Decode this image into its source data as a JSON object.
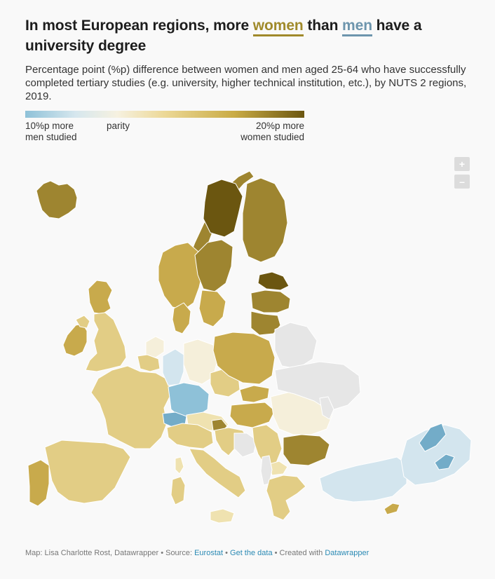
{
  "header": {
    "title_part1": "In most European regions, more ",
    "title_women": "women",
    "title_part2": " than ",
    "title_men": "men",
    "title_part3": " have a university degree",
    "subtitle": "Percentage point (%p) difference between women and men aged 25-64 who have successfully completed tertiary studies (e.g. university, higher technical institution, etc.), by NUTS 2 regions, 2019."
  },
  "legend": {
    "left_line1": "10%p more",
    "left_line2": "men studied",
    "middle": "parity",
    "right_line1": "20%p more",
    "right_line2": "women studied",
    "scale_min": -10,
    "scale_mid": 0,
    "scale_max": 20
  },
  "zoom": {
    "plus": "+",
    "minus": "–"
  },
  "colors": {
    "dark_gold": "#6b5610",
    "gold": "#9e8530",
    "mid_gold": "#c8aa4c",
    "light_gold": "#e2cd85",
    "pale_gold": "#efe2b0",
    "cream": "#f5efda",
    "pale_blue": "#d3e5ee",
    "blue": "#8ec1d8",
    "mid_blue": "#73acc8",
    "no_data": "#e6e6e6"
  },
  "regions": [
    {
      "name": "Iceland",
      "fill": "gold"
    },
    {
      "name": "Ireland",
      "fill": "mid_gold"
    },
    {
      "name": "Northern Ireland",
      "fill": "light_gold"
    },
    {
      "name": "Scotland",
      "fill": "mid_gold"
    },
    {
      "name": "England",
      "fill": "light_gold"
    },
    {
      "name": "Norway North",
      "fill": "gold"
    },
    {
      "name": "Norway South",
      "fill": "mid_gold"
    },
    {
      "name": "Sweden North",
      "fill": "dark_gold"
    },
    {
      "name": "Sweden Central",
      "fill": "gold"
    },
    {
      "name": "Sweden South",
      "fill": "mid_gold"
    },
    {
      "name": "Finland",
      "fill": "gold"
    },
    {
      "name": "Estonia",
      "fill": "dark_gold"
    },
    {
      "name": "Latvia",
      "fill": "gold"
    },
    {
      "name": "Lithuania",
      "fill": "gold"
    },
    {
      "name": "Denmark",
      "fill": "mid_gold"
    },
    {
      "name": "Netherlands",
      "fill": "cream"
    },
    {
      "name": "Belgium",
      "fill": "light_gold"
    },
    {
      "name": "France",
      "fill": "light_gold"
    },
    {
      "name": "Spain",
      "fill": "light_gold"
    },
    {
      "name": "Portugal",
      "fill": "mid_gold"
    },
    {
      "name": "Germany West",
      "fill": "pale_blue"
    },
    {
      "name": "Germany South",
      "fill": "blue"
    },
    {
      "name": "Germany East",
      "fill": "cream"
    },
    {
      "name": "Switzerland",
      "fill": "mid_blue"
    },
    {
      "name": "Austria",
      "fill": "pale_gold"
    },
    {
      "name": "Czechia",
      "fill": "light_gold"
    },
    {
      "name": "Poland",
      "fill": "mid_gold"
    },
    {
      "name": "Slovakia",
      "fill": "mid_gold"
    },
    {
      "name": "Hungary",
      "fill": "mid_gold"
    },
    {
      "name": "Slovenia",
      "fill": "gold"
    },
    {
      "name": "Croatia",
      "fill": "light_gold"
    },
    {
      "name": "Bosnia",
      "fill": "no_data"
    },
    {
      "name": "Serbia",
      "fill": "light_gold"
    },
    {
      "name": "Romania",
      "fill": "cream"
    },
    {
      "name": "Bulgaria",
      "fill": "gold"
    },
    {
      "name": "North Macedonia",
      "fill": "pale_gold"
    },
    {
      "name": "Albania",
      "fill": "no_data"
    },
    {
      "name": "Greece",
      "fill": "light_gold"
    },
    {
      "name": "Italy North",
      "fill": "light_gold"
    },
    {
      "name": "Italy South",
      "fill": "light_gold"
    },
    {
      "name": "Sardinia",
      "fill": "light_gold"
    },
    {
      "name": "Sicily",
      "fill": "pale_gold"
    },
    {
      "name": "Corsica",
      "fill": "pale_gold"
    },
    {
      "name": "Turkey West",
      "fill": "pale_blue"
    },
    {
      "name": "Turkey East",
      "fill": "pale_blue"
    },
    {
      "name": "Turkey Hotspot",
      "fill": "mid_blue"
    },
    {
      "name": "Cyprus",
      "fill": "mid_gold"
    },
    {
      "name": "Belarus",
      "fill": "no_data"
    },
    {
      "name": "Ukraine",
      "fill": "no_data"
    },
    {
      "name": "Moldova",
      "fill": "no_data"
    }
  ],
  "footer": {
    "prefix": "Map: Lisa Charlotte Rost, Datawrapper • Source: ",
    "source_link": "Eurostat",
    "sep1": " • ",
    "data_link": "Get the data",
    "sep2": " • Created with ",
    "created_link": "Datawrapper"
  }
}
